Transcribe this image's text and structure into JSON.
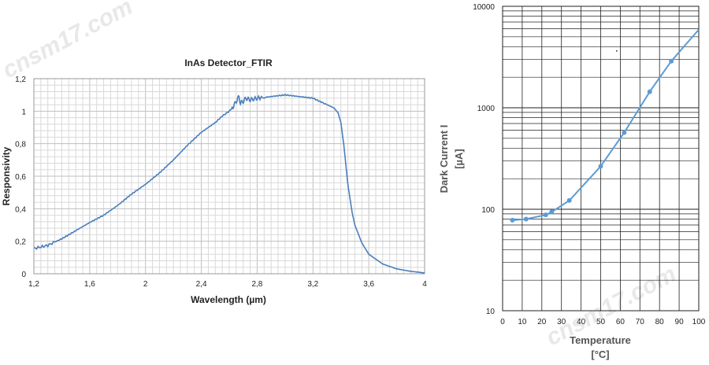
{
  "watermark": "cnsm17.com",
  "chart_data": [
    {
      "type": "line",
      "title": "InAs Detector_FTIR",
      "xlabel": "Wavelength (µm)",
      "ylabel": "Responsivity",
      "xlim": [
        1.2,
        4.0
      ],
      "ylim": [
        0,
        1.2
      ],
      "x_ticks": [
        "1,2",
        "1,6",
        "2",
        "2,4",
        "2,8",
        "3,2",
        "3,6",
        "4"
      ],
      "y_ticks": [
        "0",
        "0,2",
        "0,4",
        "0,6",
        "0,8",
        "1",
        "1,2"
      ],
      "grid": true,
      "line_color": "#4a7ebb",
      "series": [
        {
          "name": "Responsivity",
          "x": [
            1.2,
            1.3,
            1.4,
            1.5,
            1.6,
            1.7,
            1.8,
            1.9,
            2.0,
            2.1,
            2.2,
            2.3,
            2.4,
            2.5,
            2.55,
            2.6,
            2.63,
            2.65,
            2.67,
            2.68,
            2.7,
            2.72,
            2.75,
            2.8,
            2.9,
            3.0,
            3.1,
            3.2,
            3.3,
            3.35,
            3.38,
            3.4,
            3.42,
            3.45,
            3.48,
            3.5,
            3.55,
            3.6,
            3.7,
            3.8,
            3.9,
            4.0
          ],
          "y": [
            0.155,
            0.175,
            0.215,
            0.265,
            0.315,
            0.36,
            0.42,
            0.49,
            0.55,
            0.62,
            0.7,
            0.79,
            0.87,
            0.93,
            0.97,
            1.0,
            1.03,
            1.06,
            1.09,
            1.05,
            1.06,
            1.08,
            1.07,
            1.08,
            1.09,
            1.1,
            1.09,
            1.08,
            1.04,
            1.02,
            0.99,
            0.93,
            0.8,
            0.55,
            0.38,
            0.3,
            0.19,
            0.12,
            0.06,
            0.03,
            0.015,
            0.005
          ]
        }
      ]
    },
    {
      "type": "line",
      "title": "",
      "xlabel": "Temperature",
      "xlabel_unit": "[°C]",
      "ylabel": "Dark Current I",
      "ylabel_unit": "[µA]",
      "xlim": [
        0,
        100
      ],
      "ylim": [
        10,
        10000
      ],
      "y_scale": "log",
      "x_ticks": [
        "0",
        "10",
        "20",
        "30",
        "40",
        "50",
        "60",
        "70",
        "80",
        "90",
        "100"
      ],
      "y_ticks": [
        "10",
        "100",
        "1000",
        "10000"
      ],
      "grid": true,
      "line_color": "#5b9bd5",
      "series": [
        {
          "name": "Dark Current",
          "x": [
            5,
            12,
            22,
            25,
            34,
            50,
            62,
            75,
            86,
            100
          ],
          "y": [
            78,
            80,
            88,
            94,
            122,
            265,
            570,
            1440,
            2880,
            5900
          ]
        }
      ]
    }
  ]
}
